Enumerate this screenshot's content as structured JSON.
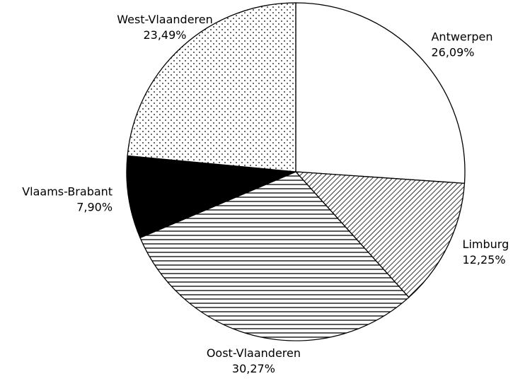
{
  "chart_data": {
    "type": "pie",
    "categories": [
      "Antwerpen",
      "Limburg",
      "Oost-Vlaanderen",
      "Vlaams-Brabant",
      "West-Vlaanderen"
    ],
    "values": [
      26.09,
      12.25,
      30.27,
      7.9,
      23.49
    ],
    "value_labels": [
      "26,09%",
      "12,25%",
      "30,27%",
      "7,90%",
      "23,49%"
    ],
    "patterns": [
      "none",
      "diagonal",
      "horizontal",
      "solid",
      "dots"
    ]
  }
}
